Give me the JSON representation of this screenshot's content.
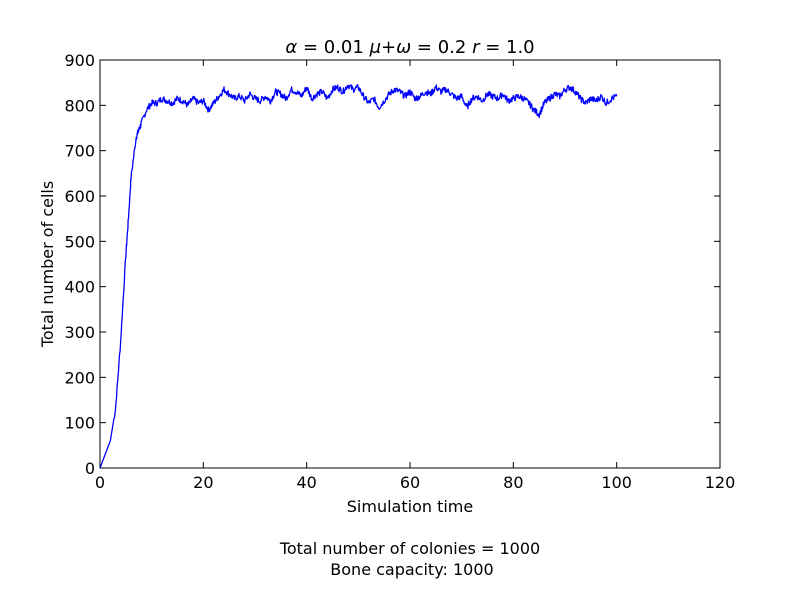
{
  "chart_data": {
    "type": "line",
    "title": {
      "alpha_symbol": "α",
      "alpha_rest": " = 0.01 ",
      "mu_symbol": "μ",
      "plus": "+",
      "omega_symbol": "ω",
      "omega_rest": " = 0.2 ",
      "r_symbol": "r",
      "r_rest": " = 1.0"
    },
    "xlabel": "Simulation time",
    "ylabel": "Total number of cells",
    "xlim": [
      0,
      120
    ],
    "ylim": [
      0,
      900
    ],
    "xticks": [
      0,
      20,
      40,
      60,
      80,
      100,
      120
    ],
    "yticks": [
      0,
      100,
      200,
      300,
      400,
      500,
      600,
      700,
      800,
      900
    ],
    "grid": false,
    "line_color": "#0000ff",
    "series": [
      {
        "x": [
          0,
          1,
          2,
          3,
          4,
          5,
          5.5,
          6,
          7,
          7.5,
          8,
          9,
          10,
          11,
          12,
          13,
          14,
          15,
          16,
          17,
          18,
          19,
          20,
          21,
          22,
          23,
          24,
          25,
          26,
          27,
          28,
          29,
          30,
          31,
          32,
          33,
          34,
          35,
          36,
          37,
          38,
          39,
          40,
          41,
          42,
          43,
          44,
          45,
          46,
          47,
          48,
          49,
          50,
          51,
          52,
          53,
          54,
          55,
          56,
          57,
          58,
          59,
          60,
          61,
          62,
          63,
          64,
          65,
          66,
          67,
          68,
          69,
          70,
          71,
          72,
          73,
          74,
          75,
          76,
          77,
          78,
          79,
          80,
          81,
          82,
          83,
          84,
          85,
          86,
          87,
          88,
          89,
          90,
          91,
          92,
          93,
          94,
          95,
          96,
          97,
          98,
          99,
          100
        ],
        "y": [
          0,
          30,
          60,
          130,
          280,
          470,
          550,
          640,
          730,
          745,
          760,
          790,
          805,
          805,
          815,
          810,
          805,
          815,
          810,
          800,
          815,
          805,
          810,
          790,
          805,
          820,
          835,
          825,
          815,
          820,
          810,
          825,
          815,
          810,
          820,
          810,
          830,
          825,
          815,
          835,
          830,
          820,
          840,
          815,
          825,
          830,
          815,
          835,
          840,
          830,
          845,
          835,
          840,
          820,
          805,
          815,
          795,
          810,
          825,
          835,
          830,
          820,
          830,
          815,
          820,
          830,
          825,
          840,
          830,
          835,
          825,
          815,
          820,
          795,
          815,
          820,
          810,
          825,
          820,
          815,
          825,
          810,
          815,
          820,
          815,
          805,
          790,
          780,
          805,
          815,
          825,
          820,
          835,
          840,
          830,
          815,
          805,
          815,
          810,
          820,
          805,
          815,
          820
        ]
      }
    ]
  },
  "caption": {
    "line1": "Total number of colonies = 1000",
    "line2": "Bone capacity: 1000"
  }
}
